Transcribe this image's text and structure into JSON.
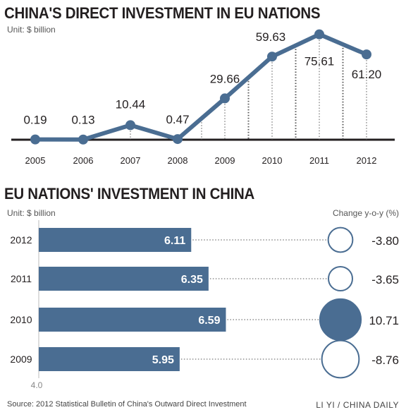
{
  "chart_data": [
    {
      "type": "line",
      "title": "CHINA'S DIRECT INVESTMENT IN EU NATIONS",
      "unit_label": "Unit: $ billion",
      "x": [
        "2005",
        "2006",
        "2007",
        "2008",
        "2009",
        "2010",
        "2011",
        "2012"
      ],
      "values": [
        0.19,
        0.13,
        10.44,
        0.47,
        29.66,
        59.63,
        75.61,
        61.2
      ],
      "value_labels": [
        "0.19",
        "0.13",
        "10.44",
        "0.47",
        "29.66",
        "59.63",
        "75.61",
        "61.20"
      ],
      "ylim": [
        0,
        80
      ],
      "color": "#4a6d92"
    },
    {
      "type": "bar",
      "title": "EU NATIONS' INVESTMENT IN CHINA",
      "unit_label": "Unit: $ billion",
      "change_label": "Change y-o-y (%)",
      "categories": [
        "2012",
        "2011",
        "2010",
        "2009"
      ],
      "values": [
        6.11,
        6.35,
        6.59,
        5.95
      ],
      "value_labels": [
        "6.11",
        "6.35",
        "6.59",
        "5.95"
      ],
      "change": [
        -3.8,
        -3.65,
        10.71,
        -8.76
      ],
      "change_labels": [
        "-3.80",
        "-3.65",
        "10.71",
        "-8.76"
      ],
      "axis_start_label": "4.0",
      "xlim": [
        4.0,
        7.0
      ],
      "color": "#4a6d92"
    }
  ],
  "footer": {
    "source": "Source: 2012 Statistical Bulletin of China's Outward Direct Investment",
    "credit": "LI YI / CHINA DAILY"
  }
}
